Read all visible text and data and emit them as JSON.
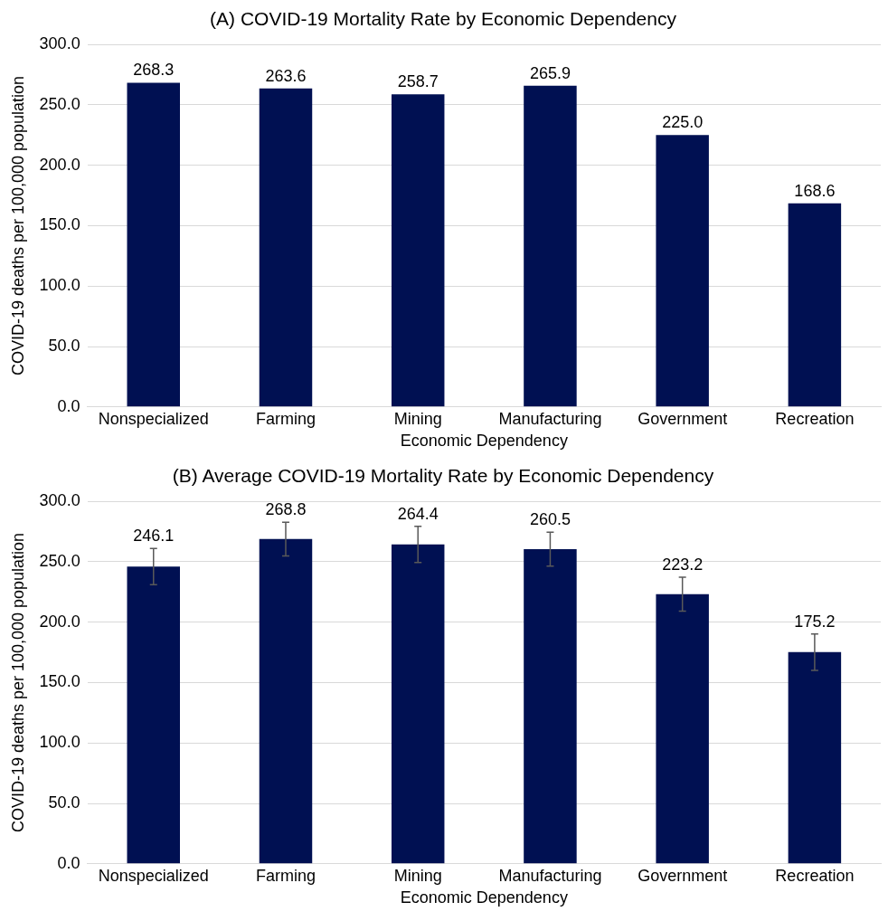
{
  "chart_data": [
    {
      "type": "bar",
      "title": "(A) COVID-19 Mortality Rate by Economic Dependency",
      "xlabel": "Economic Dependency",
      "ylabel": "COVID-19 deaths per 100,000 population",
      "categories": [
        "Nonspecialized",
        "Farming",
        "Mining",
        "Manufacturing",
        "Government",
        "Recreation"
      ],
      "values": [
        268.3,
        263.6,
        258.7,
        265.9,
        225.0,
        168.6
      ],
      "color": "#001052",
      "ylim": [
        0,
        300
      ],
      "yticks": [
        {
          "value": 0,
          "label": "0.0"
        },
        {
          "value": 50,
          "label": "50.0"
        },
        {
          "value": 100,
          "label": "100.0"
        },
        {
          "value": 150,
          "label": "150.0"
        },
        {
          "value": 200,
          "label": "200.0"
        },
        {
          "value": 250,
          "label": "250.0"
        },
        {
          "value": 300,
          "label": "300.0"
        }
      ],
      "grid": "y",
      "legend": false,
      "value_labels": [
        "268.3",
        "263.6",
        "258.7",
        "265.9",
        "225.0",
        "168.6"
      ]
    },
    {
      "type": "bar",
      "title": "(B) Average COVID-19 Mortality Rate by Economic Dependency",
      "xlabel": "Economic Dependency",
      "ylabel": "COVID-19 deaths per 100,000 population",
      "categories": [
        "Nonspecialized",
        "Farming",
        "Mining",
        "Manufacturing",
        "Government",
        "Recreation"
      ],
      "values": [
        246.1,
        268.8,
        264.4,
        260.5,
        223.2,
        175.2
      ],
      "color": "#001052",
      "errors": [
        15,
        14,
        15,
        14,
        14,
        15
      ],
      "ylim": [
        0,
        300
      ],
      "yticks": [
        {
          "value": 0,
          "label": "0.0"
        },
        {
          "value": 50,
          "label": "50.0"
        },
        {
          "value": 100,
          "label": "100.0"
        },
        {
          "value": 150,
          "label": "150.0"
        },
        {
          "value": 200,
          "label": "200.0"
        },
        {
          "value": 250,
          "label": "250.0"
        },
        {
          "value": 300,
          "label": "300.0"
        }
      ],
      "grid": "y",
      "legend": false,
      "value_labels": [
        "246.1",
        "268.8",
        "264.4",
        "260.5",
        "223.2",
        "175.2"
      ]
    }
  ]
}
